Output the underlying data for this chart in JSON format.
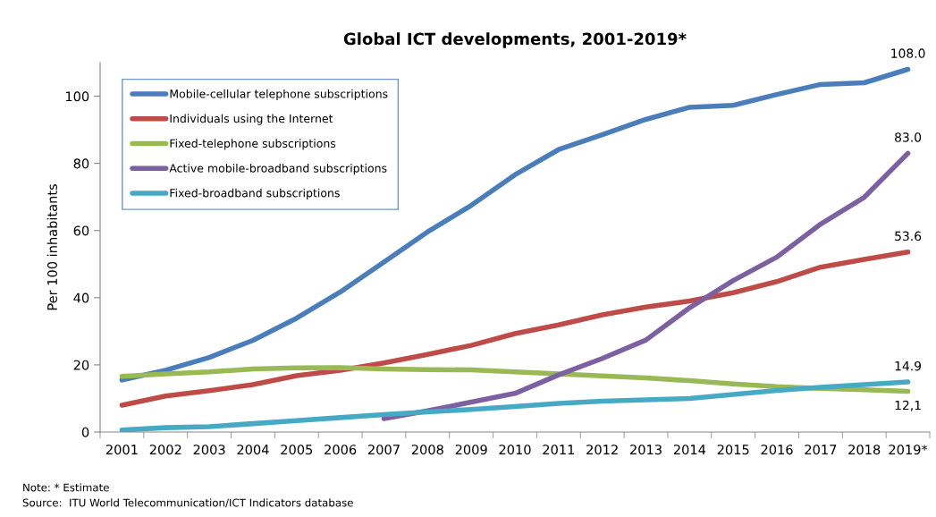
{
  "chart_data": {
    "type": "line",
    "title": "Global ICT developments, 2001-2019*",
    "ylabel": "Per 100 inhabitants",
    "categories": [
      "2001",
      "2002",
      "2003",
      "2004",
      "2005",
      "2006",
      "2007",
      "2008",
      "2009",
      "2010",
      "2011",
      "2012",
      "2013",
      "2014",
      "2015",
      "2016",
      "2017",
      "2018",
      "2019*"
    ],
    "series": [
      {
        "name": "Mobile-cellular telephone subscriptions",
        "color": "#4a7ebb",
        "values": [
          15.5,
          18.4,
          22.2,
          27.3,
          33.9,
          41.7,
          50.6,
          59.6,
          67.5,
          76.6,
          84.1,
          88.5,
          93.1,
          96.7,
          97.3,
          100.5,
          103.5,
          104.0,
          108.0
        ]
      },
      {
        "name": "Individuals using the Internet",
        "color": "#be4b48",
        "values": [
          8.0,
          10.7,
          12.3,
          14.1,
          16.8,
          18.4,
          20.6,
          23.1,
          25.8,
          29.3,
          31.9,
          34.9,
          37.2,
          39.0,
          41.5,
          44.8,
          49.1,
          51.4,
          53.6
        ]
      },
      {
        "name": "Fixed-telephone subscriptions",
        "color": "#98b954",
        "values": [
          16.6,
          17.3,
          17.9,
          18.8,
          19.1,
          19.2,
          18.8,
          18.6,
          18.5,
          17.9,
          17.3,
          16.7,
          16.1,
          15.3,
          14.3,
          13.5,
          13.0,
          12.6,
          12.1
        ]
      },
      {
        "name": "Active mobile-broadband subscriptions",
        "color": "#7d60a0",
        "values": [
          null,
          null,
          null,
          null,
          null,
          null,
          4.0,
          6.3,
          8.9,
          11.5,
          17.0,
          21.9,
          27.4,
          37.0,
          45.1,
          52.1,
          61.9,
          69.9,
          83.0
        ]
      },
      {
        "name": "Fixed-broadband subscriptions",
        "color": "#46aac5",
        "values": [
          0.6,
          1.3,
          1.6,
          2.5,
          3.4,
          4.3,
          5.2,
          6.0,
          6.7,
          7.6,
          8.5,
          9.2,
          9.6,
          10.0,
          11.2,
          12.4,
          13.3,
          14.1,
          14.9
        ]
      }
    ],
    "ylim": [
      0,
      110
    ],
    "yticks": [
      0,
      20,
      40,
      60,
      80,
      100
    ],
    "grid": false,
    "legend": "top left",
    "marker": "none",
    "line_style": "solid",
    "annotations": [
      {
        "text": "108.0",
        "x": "2019*",
        "y": 108.0
      },
      {
        "text": "83.0",
        "x": "2019*",
        "y": 83.0
      },
      {
        "text": "53.6",
        "x": "2019*",
        "y": 53.6
      },
      {
        "text": "14.9",
        "x": "2019*",
        "y": 14.9
      },
      {
        "text": "12,1",
        "x": "2019*",
        "y": 12.1
      },
      "Note: * Estimate",
      "Source:  ITU World Telecommunication/ICT Indicators database"
    ]
  }
}
